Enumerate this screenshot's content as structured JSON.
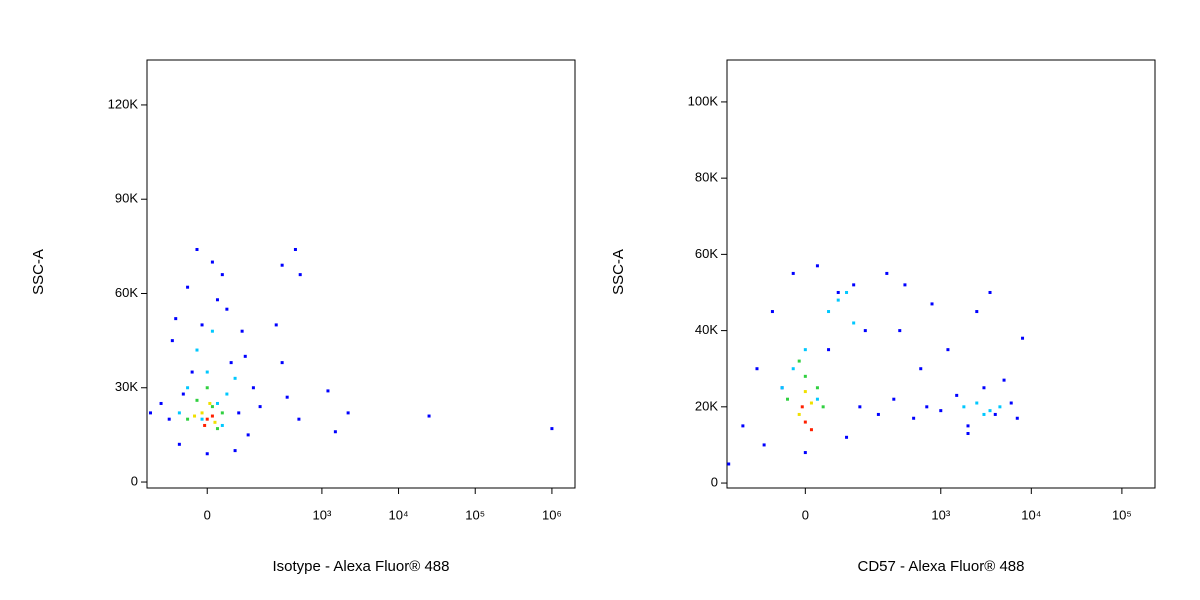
{
  "chart_data": [
    {
      "type": "scatter",
      "x_scale": "logicle",
      "x_label": "Isotype - Alexa Fluor® 488",
      "y_label": "SSC-A",
      "xlim": [
        -190,
        2000000
      ],
      "xticks": [
        0,
        {
          "value": 1000,
          "label": "10³"
        },
        {
          "value": 10000,
          "label": "10⁴"
        },
        {
          "value": 100000,
          "label": "10⁵"
        },
        {
          "value": 1000000,
          "label": "10⁶"
        }
      ],
      "ylim": [
        -1900,
        134300
      ],
      "yticks": [
        0,
        {
          "value": 30000,
          "label": "30K"
        },
        {
          "value": 60000,
          "label": "60K"
        },
        {
          "value": 90000,
          "label": "90K"
        },
        {
          "value": 120000,
          "label": "120K"
        }
      ],
      "series": [
        {
          "color": "#0000ff",
          "x": [
            -120,
            -80,
            -40,
            -20,
            10,
            40,
            80,
            120,
            -60,
            0,
            60,
            100,
            -30,
            30,
            -90,
            90,
            -10,
            20,
            50,
            -50,
            70,
            -70,
            300,
            450,
            520,
            250,
            350,
            300,
            1200,
            2200,
            1500,
            25000,
            1000000,
            500,
            -170,
            150
          ],
          "y": [
            25000,
            45000,
            62000,
            74000,
            70000,
            55000,
            48000,
            30000,
            12000,
            9000,
            10000,
            15000,
            35000,
            66000,
            20000,
            40000,
            50000,
            58000,
            38000,
            28000,
            22000,
            52000,
            69000,
            74000,
            66000,
            50000,
            27000,
            38000,
            29000,
            22000,
            16000,
            21000,
            17000,
            20000,
            22000,
            24000
          ]
        },
        {
          "color": "#00c8ff",
          "x": [
            -40,
            0,
            40,
            -20,
            20,
            -60,
            60,
            10,
            -10,
            30
          ],
          "y": [
            30000,
            35000,
            28000,
            42000,
            25000,
            22000,
            33000,
            48000,
            20000,
            18000
          ]
        },
        {
          "color": "#30d040",
          "x": [
            -20,
            10,
            30,
            -40,
            0,
            20
          ],
          "y": [
            26000,
            24000,
            22000,
            20000,
            30000,
            17000
          ]
        },
        {
          "color": "#f0e000",
          "x": [
            -10,
            15,
            5,
            -25
          ],
          "y": [
            22000,
            19000,
            25000,
            21000
          ]
        },
        {
          "color": "#ff2000",
          "x": [
            0,
            -5,
            10
          ],
          "y": [
            20000,
            18000,
            21000
          ]
        }
      ]
    },
    {
      "type": "scatter",
      "x_scale": "logicle",
      "x_label": "CD57 - Alexa Fluor® 488",
      "y_label": "SSC-A",
      "xlim": [
        -230,
        232000
      ],
      "xticks": [
        0,
        {
          "value": 1000,
          "label": "10³"
        },
        {
          "value": 10000,
          "label": "10⁴"
        },
        {
          "value": 100000,
          "label": "10⁵"
        }
      ],
      "ylim": [
        -1300,
        111000
      ],
      "yticks": [
        0,
        {
          "value": 20000,
          "label": "20K"
        },
        {
          "value": 40000,
          "label": "40K"
        },
        {
          "value": 60000,
          "label": "60K"
        },
        {
          "value": 80000,
          "label": "80K"
        },
        {
          "value": 100000,
          "label": "100K"
        }
      ],
      "series": [
        {
          "color": "#0000ff",
          "x": [
            -150,
            -100,
            -60,
            -20,
            20,
            60,
            100,
            140,
            -80,
            0,
            80,
            120,
            40,
            -40,
            200,
            300,
            500,
            700,
            1000,
            1500,
            2000,
            3000,
            4000,
            5000,
            6000,
            7000,
            400,
            800,
            1200,
            2500,
            3500,
            600,
            250,
            350,
            2000,
            -220,
            8000
          ],
          "y": [
            15000,
            30000,
            45000,
            55000,
            57000,
            50000,
            52000,
            40000,
            10000,
            8000,
            12000,
            20000,
            35000,
            25000,
            18000,
            22000,
            17000,
            20000,
            19000,
            23000,
            15000,
            25000,
            18000,
            27000,
            21000,
            17000,
            52000,
            47000,
            35000,
            45000,
            50000,
            30000,
            55000,
            40000,
            13000,
            5000,
            38000
          ]
        },
        {
          "color": "#00c8ff",
          "x": [
            -40,
            0,
            40,
            80,
            -20,
            20,
            1800,
            2500,
            3500,
            4500,
            3000,
            60,
            100
          ],
          "y": [
            25000,
            35000,
            45000,
            50000,
            30000,
            22000,
            20000,
            21000,
            19000,
            20000,
            18000,
            48000,
            42000
          ]
        },
        {
          "color": "#30d040",
          "x": [
            -30,
            0,
            30,
            -10,
            20
          ],
          "y": [
            22000,
            28000,
            20000,
            32000,
            25000
          ]
        },
        {
          "color": "#f0e000",
          "x": [
            -10,
            10,
            0
          ],
          "y": [
            18000,
            21000,
            24000
          ]
        },
        {
          "color": "#ff2000",
          "x": [
            0,
            -5,
            10
          ],
          "y": [
            16000,
            20000,
            14000
          ]
        }
      ]
    }
  ]
}
